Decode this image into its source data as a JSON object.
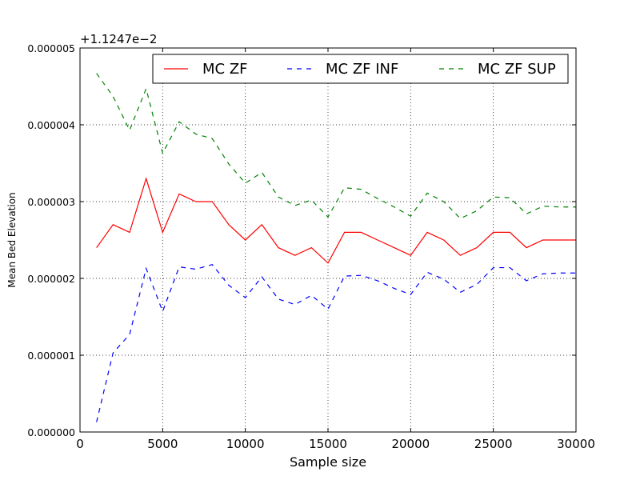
{
  "chart_data": {
    "type": "line",
    "offset_label": "+1.1247e−2",
    "xlabel": "Sample size",
    "ylabel": "Mean Bed Elevation",
    "xlim": [
      0,
      30000
    ],
    "ylim": [
      0,
      5e-06
    ],
    "xticks": [
      0,
      5000,
      10000,
      15000,
      20000,
      25000,
      30000
    ],
    "xtick_labels": [
      "0",
      "5000",
      "10000",
      "15000",
      "20000",
      "25000",
      "30000"
    ],
    "yticks": [
      0,
      1e-06,
      2e-06,
      3e-06,
      4e-06,
      5e-06
    ],
    "ytick_labels": [
      "0.000000",
      "0.000001",
      "0.000002",
      "0.000003",
      "0.000004",
      "0.000005"
    ],
    "grid": true,
    "legend_position": "top-right",
    "x": [
      1000,
      2000,
      3000,
      4000,
      5000,
      6000,
      7000,
      8000,
      9000,
      10000,
      11000,
      12000,
      13000,
      14000,
      15000,
      16000,
      17000,
      18000,
      19000,
      20000,
      21000,
      22000,
      23000,
      24000,
      25000,
      26000,
      27000,
      28000,
      29000,
      30000
    ],
    "series": [
      {
        "name": "MC ZF",
        "color": "#ff0000",
        "dash": "solid",
        "values": [
          2.4e-06,
          2.7e-06,
          2.6e-06,
          3.3e-06,
          2.6e-06,
          3.1e-06,
          3e-06,
          3e-06,
          2.7e-06,
          2.5e-06,
          2.7e-06,
          2.4e-06,
          2.3e-06,
          2.4e-06,
          2.2e-06,
          2.6e-06,
          2.6e-06,
          2.5e-06,
          2.4e-06,
          2.3e-06,
          2.6e-06,
          2.5e-06,
          2.3e-06,
          2.4e-06,
          2.6e-06,
          2.6e-06,
          2.4e-06,
          2.5e-06,
          2.5e-06,
          2.5e-06
        ]
      },
      {
        "name": "MC ZF INF",
        "color": "#0000ff",
        "dash": "dashed",
        "values": [
          1.3e-07,
          1.03e-06,
          1.27e-06,
          2.13e-06,
          1.57e-06,
          2.15e-06,
          2.12e-06,
          2.18e-06,
          1.91e-06,
          1.75e-06,
          2.02e-06,
          1.73e-06,
          1.66e-06,
          1.78e-06,
          1.6e-06,
          2.03e-06,
          2.04e-06,
          1.97e-06,
          1.87e-06,
          1.79e-06,
          2.08e-06,
          1.99e-06,
          1.82e-06,
          1.92e-06,
          2.14e-06,
          2.14e-06,
          1.97e-06,
          2.06e-06,
          2.07e-06,
          2.07e-06
        ]
      },
      {
        "name": "MC ZF SUP",
        "color": "#008000",
        "dash": "dashed",
        "values": [
          4.67e-06,
          4.37e-06,
          3.93e-06,
          4.47e-06,
          3.63e-06,
          4.04e-06,
          3.88e-06,
          3.82e-06,
          3.49e-06,
          3.24e-06,
          3.38e-06,
          3.06e-06,
          2.95e-06,
          3.02e-06,
          2.8e-06,
          3.18e-06,
          3.16e-06,
          3.04e-06,
          2.93e-06,
          2.81e-06,
          3.11e-06,
          3e-06,
          2.78e-06,
          2.88e-06,
          3.06e-06,
          3.05e-06,
          2.84e-06,
          2.94e-06,
          2.93e-06,
          2.93e-06
        ]
      }
    ]
  }
}
